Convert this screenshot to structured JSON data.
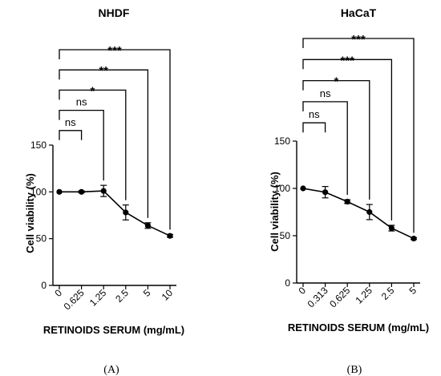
{
  "chart_data": [
    {
      "type": "line",
      "title": "NHDF",
      "panel_label": "(A)",
      "xlabel": "RETINOIDS SERUM (mg/mL)",
      "ylabel": "Cell viability (%)",
      "categories": [
        "0",
        "0.625",
        "1.25",
        "2.5",
        "5",
        "10"
      ],
      "values": [
        100,
        100,
        101,
        78,
        64,
        53
      ],
      "errors": [
        0,
        1,
        6,
        8,
        3,
        1.5
      ],
      "ylim": [
        0,
        150
      ],
      "yticks": [
        "0",
        "50",
        "100",
        "150"
      ],
      "significance": [
        {
          "from": "0",
          "to": "0.625",
          "label": "ns"
        },
        {
          "from": "0",
          "to": "1.25",
          "label": "ns"
        },
        {
          "from": "0",
          "to": "2.5",
          "label": "*"
        },
        {
          "from": "0",
          "to": "5",
          "label": "**"
        },
        {
          "from": "0",
          "to": "10",
          "label": "***"
        }
      ]
    },
    {
      "type": "line",
      "title": "HaCaT",
      "panel_label": "(B)",
      "xlabel": "RETINOIDS SERUM (mg/mL)",
      "ylabel": "Cell viability (%)",
      "categories": [
        "0",
        "0.313",
        "0.625",
        "1.25",
        "2.5",
        "5"
      ],
      "values": [
        100,
        96,
        86,
        75,
        58,
        47
      ],
      "errors": [
        0,
        6,
        2,
        8,
        3,
        1
      ],
      "ylim": [
        0,
        150
      ],
      "yticks": [
        "0",
        "50",
        "100",
        "150"
      ],
      "significance": [
        {
          "from": "0",
          "to": "0.313",
          "label": "ns"
        },
        {
          "from": "0",
          "to": "0.625",
          "label": "ns"
        },
        {
          "from": "0",
          "to": "1.25",
          "label": "*"
        },
        {
          "from": "0",
          "to": "2.5",
          "label": "***"
        },
        {
          "from": "0",
          "to": "5",
          "label": "***"
        }
      ]
    }
  ]
}
